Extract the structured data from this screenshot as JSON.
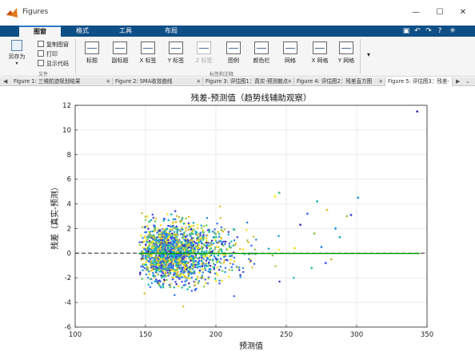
{
  "window": {
    "title": "Figures",
    "minimize": "—",
    "maximize": "☐",
    "close": "✕"
  },
  "ribbon_tabs": [
    "图窗",
    "格式",
    "工具",
    "布局"
  ],
  "quick_access": [
    "▣",
    "↶",
    "↷",
    "?",
    "✳"
  ],
  "ribbon": {
    "file_group": {
      "save_as": "另存为",
      "copy_figure": "复制图窗",
      "print": "打印",
      "show_code": "显示代码",
      "label": "文件"
    },
    "labels_group": {
      "label": "标签和注释",
      "buttons": [
        {
          "name": "title",
          "label": "标题",
          "icon": "title-icon",
          "enabled": true
        },
        {
          "name": "subtitle",
          "label": "副标题",
          "icon": "subtitle-icon",
          "enabled": true
        },
        {
          "name": "xlabel",
          "label": "X 标签",
          "icon": "xlabel-icon",
          "enabled": true
        },
        {
          "name": "ylabel",
          "label": "Y 标签",
          "icon": "ylabel-icon",
          "enabled": true
        },
        {
          "name": "zlabel",
          "label": "Z 标签",
          "icon": "zlabel-icon",
          "enabled": false
        },
        {
          "name": "legend",
          "label": "图例",
          "icon": "legend-icon",
          "enabled": true
        },
        {
          "name": "colorbar",
          "label": "颜色栏",
          "icon": "colorbar-icon",
          "enabled": true
        },
        {
          "name": "grid",
          "label": "网格",
          "icon": "grid-icon",
          "enabled": true
        },
        {
          "name": "xgrid",
          "label": "X 网格",
          "icon": "xgrid-icon",
          "enabled": true
        },
        {
          "name": "ygrid",
          "label": "Y 网格",
          "icon": "ygrid-icon",
          "enabled": true
        }
      ]
    }
  },
  "figure_tabs": [
    {
      "label": "Figure 1: 三维航迹规划结果",
      "active": false
    },
    {
      "label": "Figure 2: SMA收敛曲线",
      "active": false
    },
    {
      "label": "Figure 3: 评估图1：真实-预测散点",
      "active": false
    },
    {
      "label": "Figure 4: 评估图2：残差直方图",
      "active": false
    },
    {
      "label": "Figure 5: 评估图3：残差-",
      "active": true
    }
  ],
  "tab_nav": {
    "prev": "◀",
    "next": "▶",
    "menu": "⌄"
  },
  "colors": {
    "titlebar_accent": "#0e4f86",
    "trend_line": "#00a000",
    "zero_line": "#404040"
  },
  "chart_data": {
    "type": "scatter",
    "title": "残差-预测值（趋势线辅助观察）",
    "xlabel": "预测值",
    "ylabel": "残差（真实-预测）",
    "xlim": [
      100,
      350
    ],
    "ylim": [
      -6,
      12
    ],
    "xticks": [
      100,
      150,
      200,
      250,
      300,
      350
    ],
    "yticks": [
      -6,
      -4,
      -2,
      0,
      2,
      4,
      6,
      8,
      10,
      12
    ],
    "grid": true,
    "colormap": "parula",
    "point_cloud": {
      "description_of_shape": "dense cluster of points, roughly 2000 samples",
      "x_range": [
        145,
        260
      ],
      "x_mode": 170,
      "y_spread": [
        -4.8,
        4.8
      ],
      "y_center": 0
    },
    "outliers": [
      {
        "x": 343,
        "y": 11.5
      },
      {
        "x": 301,
        "y": 4.5
      },
      {
        "x": 293,
        "y": 3.0
      },
      {
        "x": 296,
        "y": 3.1
      },
      {
        "x": 272,
        "y": 4.2
      },
      {
        "x": 279,
        "y": 3.5
      },
      {
        "x": 265,
        "y": 3.2
      },
      {
        "x": 245,
        "y": 4.9
      },
      {
        "x": 242,
        "y": 4.6
      },
      {
        "x": 285,
        "y": 2.0
      },
      {
        "x": 270,
        "y": 1.6
      },
      {
        "x": 260,
        "y": 2.3
      },
      {
        "x": 288,
        "y": 1.3
      },
      {
        "x": 282,
        "y": -0.5
      },
      {
        "x": 278,
        "y": -0.8
      },
      {
        "x": 268,
        "y": -1.2
      },
      {
        "x": 256,
        "y": 0.4
      },
      {
        "x": 275,
        "y": 0.5
      }
    ],
    "reference_lines": [
      {
        "name": "零残差线",
        "y": 0,
        "style": "dashed"
      },
      {
        "name": "趋势线",
        "x": [
          145,
          345
        ],
        "y": [
          -0.02,
          -0.02
        ],
        "style": "solid"
      }
    ]
  }
}
